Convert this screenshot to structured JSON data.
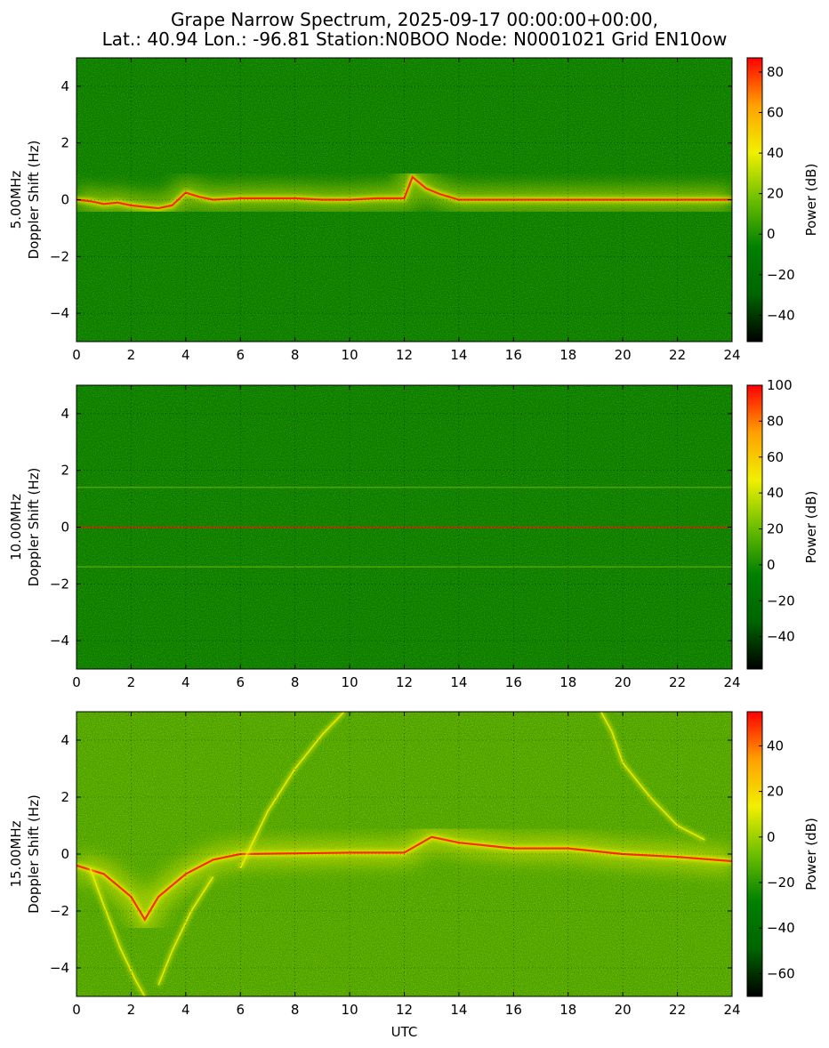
{
  "figure": {
    "title_line1": "Grape Narrow Spectrum, 2025-09-17 00:00:00+00:00,",
    "title_line2": "Lat.: 40.94 Lon.: -96.81 Station:N0BOO Node: N0001021 Grid EN10ow"
  },
  "colors": {
    "background_green": "#007800",
    "mid_green": "#3c9a00",
    "yellow": "#f0f000",
    "orange": "#ffa000",
    "red": "#ff1a00",
    "black": "#000000"
  },
  "chart_data": [
    {
      "type": "heatmap",
      "name": "5 MHz panel",
      "frequency_label": "5.00MHz",
      "ylabel": "Doppler Shift (Hz)",
      "xlabel": "",
      "xlim": [
        0,
        24
      ],
      "ylim": [
        -5,
        5
      ],
      "x_ticks": [
        0,
        2,
        4,
        6,
        8,
        10,
        12,
        14,
        16,
        18,
        20,
        22,
        24
      ],
      "y_ticks": [
        -4,
        -2,
        0,
        2,
        4
      ],
      "grid": true,
      "colorbar": {
        "label": "Power (dB)",
        "range": [
          -53,
          87
        ],
        "ticks": [
          -40,
          -20,
          0,
          20,
          40,
          60,
          80
        ],
        "colormap": [
          "#000000",
          "#006400",
          "#008000",
          "#6cbf00",
          "#f0f000",
          "#ffa000",
          "#ff0000"
        ]
      },
      "carrier": [
        {
          "x": 0,
          "y": 0.0
        },
        {
          "x": 0.5,
          "y": -0.05
        },
        {
          "x": 1.0,
          "y": -0.15
        },
        {
          "x": 1.5,
          "y": -0.1
        },
        {
          "x": 2.0,
          "y": -0.2
        },
        {
          "x": 2.5,
          "y": -0.25
        },
        {
          "x": 3.0,
          "y": -0.3
        },
        {
          "x": 3.5,
          "y": -0.2
        },
        {
          "x": 4.0,
          "y": 0.25
        },
        {
          "x": 4.5,
          "y": 0.1
        },
        {
          "x": 5.0,
          "y": 0.0
        },
        {
          "x": 6,
          "y": 0.05
        },
        {
          "x": 7,
          "y": 0.05
        },
        {
          "x": 8,
          "y": 0.05
        },
        {
          "x": 9,
          "y": 0.0
        },
        {
          "x": 10,
          "y": 0.0
        },
        {
          "x": 11,
          "y": 0.05
        },
        {
          "x": 12,
          "y": 0.05
        },
        {
          "x": 12.3,
          "y": 0.8
        },
        {
          "x": 12.8,
          "y": 0.4
        },
        {
          "x": 13.3,
          "y": 0.2
        },
        {
          "x": 14,
          "y": 0.0
        },
        {
          "x": 18,
          "y": 0.0
        },
        {
          "x": 24,
          "y": 0.0
        }
      ]
    },
    {
      "type": "heatmap",
      "name": "10 MHz panel",
      "frequency_label": "10.00MHz",
      "ylabel": "Doppler Shift (Hz)",
      "xlabel": "",
      "xlim": [
        0,
        24
      ],
      "ylim": [
        -5,
        5
      ],
      "x_ticks": [
        0,
        2,
        4,
        6,
        8,
        10,
        12,
        14,
        16,
        18,
        20,
        22,
        24
      ],
      "y_ticks": [
        -4,
        -2,
        0,
        2,
        4
      ],
      "grid": true,
      "colorbar": {
        "label": "Power (dB)",
        "range": [
          -58,
          100
        ],
        "ticks": [
          -40,
          -20,
          0,
          20,
          40,
          60,
          80,
          100
        ],
        "colormap": [
          "#000000",
          "#006400",
          "#008000",
          "#6cbf00",
          "#f0f000",
          "#ffa000",
          "#ff0000"
        ]
      },
      "carrier": [
        {
          "x": 0,
          "y": 0.0
        },
        {
          "x": 24,
          "y": 0.0
        }
      ],
      "sidebands_hz": [
        1.4,
        -1.4
      ]
    },
    {
      "type": "heatmap",
      "name": "15 MHz panel",
      "frequency_label": "15.00MHz",
      "ylabel": "Doppler Shift (Hz)",
      "xlabel": "UTC",
      "xlim": [
        0,
        24
      ],
      "ylim": [
        -5,
        5
      ],
      "x_ticks": [
        0,
        2,
        4,
        6,
        8,
        10,
        12,
        14,
        16,
        18,
        20,
        22,
        24
      ],
      "y_ticks": [
        -4,
        -2,
        0,
        2,
        4
      ],
      "grid": true,
      "colorbar": {
        "label": "Power (dB)",
        "range": [
          -70,
          55
        ],
        "ticks": [
          -60,
          -40,
          -20,
          0,
          20,
          40
        ],
        "colormap": [
          "#000000",
          "#006400",
          "#008000",
          "#6cbf00",
          "#f0f000",
          "#ffa000",
          "#ff0000"
        ]
      },
      "carrier": [
        {
          "x": 0,
          "y": -0.4
        },
        {
          "x": 1,
          "y": -0.7
        },
        {
          "x": 2,
          "y": -1.5
        },
        {
          "x": 2.5,
          "y": -2.3
        },
        {
          "x": 3,
          "y": -1.5
        },
        {
          "x": 4,
          "y": -0.7
        },
        {
          "x": 5,
          "y": -0.2
        },
        {
          "x": 6,
          "y": 0.0
        },
        {
          "x": 10,
          "y": 0.05
        },
        {
          "x": 12,
          "y": 0.05
        },
        {
          "x": 13,
          "y": 0.6
        },
        {
          "x": 14,
          "y": 0.4
        },
        {
          "x": 16,
          "y": 0.2
        },
        {
          "x": 18,
          "y": 0.2
        },
        {
          "x": 20,
          "y": 0.0
        },
        {
          "x": 22,
          "y": -0.1
        },
        {
          "x": 24,
          "y": -0.25
        }
      ],
      "traces": [
        [
          {
            "x": 6,
            "y": -0.5
          },
          {
            "x": 7,
            "y": 1.5
          },
          {
            "x": 8,
            "y": 3.0
          },
          {
            "x": 9,
            "y": 4.2
          },
          {
            "x": 9.8,
            "y": 5.0
          }
        ],
        [
          {
            "x": 19.2,
            "y": 5.0
          },
          {
            "x": 19.6,
            "y": 4.3
          },
          {
            "x": 20,
            "y": 3.2
          },
          {
            "x": 21,
            "y": 2.0
          },
          {
            "x": 22,
            "y": 1.0
          },
          {
            "x": 23,
            "y": 0.5
          }
        ],
        [
          {
            "x": 0.5,
            "y": -0.5
          },
          {
            "x": 1.0,
            "y": -1.8
          },
          {
            "x": 1.6,
            "y": -3.3
          },
          {
            "x": 2.2,
            "y": -4.5
          },
          {
            "x": 2.5,
            "y": -5.0
          }
        ],
        [
          {
            "x": 3.0,
            "y": -4.6
          },
          {
            "x": 3.5,
            "y": -3.4
          },
          {
            "x": 4.2,
            "y": -2.0
          },
          {
            "x": 5.0,
            "y": -0.8
          }
        ]
      ]
    }
  ]
}
